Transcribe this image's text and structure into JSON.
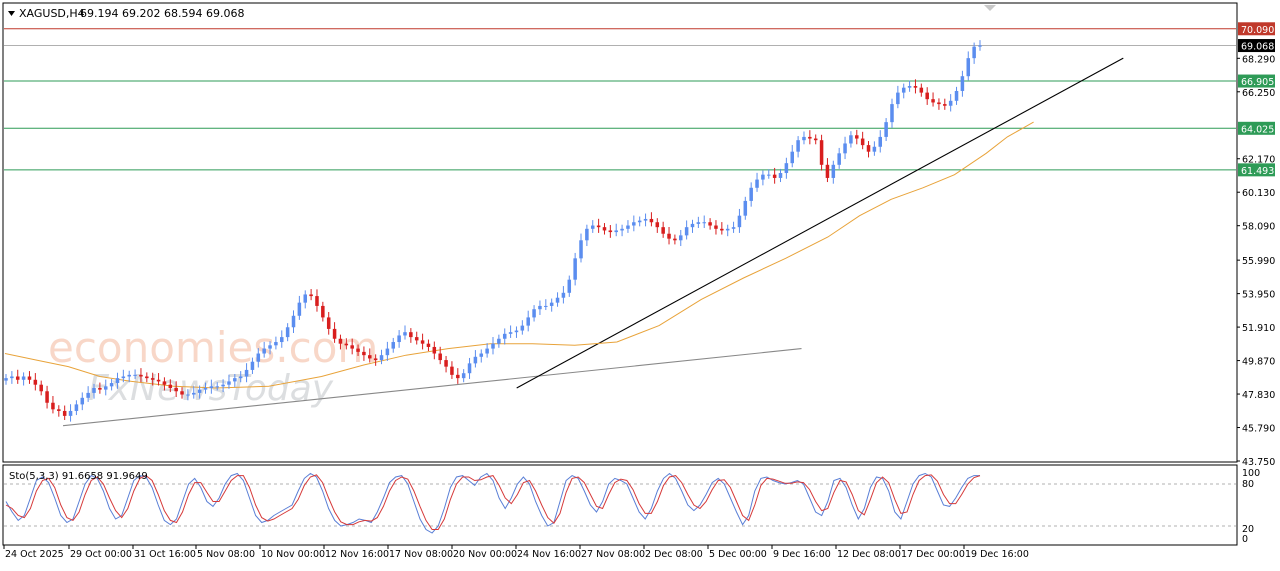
{
  "header": {
    "symbol": "XAGUSD,H4",
    "ohlc": "69.194 69.202 68.594 69.068"
  },
  "watermark": {
    "brand1": "economies.com",
    "brand2": "FxNewsToday"
  },
  "chart_data": [
    {
      "type": "candlestick",
      "instrument": "XAGUSD",
      "timeframe": "H4",
      "ylim": [
        43.75,
        71.6
      ],
      "y_ticks": [
        "70.090",
        "69.068",
        "68.290",
        "66.905",
        "66.250",
        "64.025",
        "62.170",
        "61.493",
        "60.130",
        "58.090",
        "55.990",
        "53.950",
        "51.910",
        "49.870",
        "47.830",
        "45.790",
        "43.750"
      ],
      "x_ticks": [
        "24 Oct 2025",
        "29 Oct 00:00",
        "31 Oct 16:00",
        "5 Nov 08:00",
        "10 Nov 00:00",
        "12 Nov 16:00",
        "17 Nov 08:00",
        "20 Nov 00:00",
        "24 Nov 16:00",
        "27 Nov 08:00",
        "2 Dec 08:00",
        "5 Dec 00:00",
        "9 Dec 16:00",
        "12 Dec 08:00",
        "17 Dec 00:00",
        "19 Dec 16:00"
      ],
      "current_price": 69.068,
      "horizontal_levels": [
        {
          "value": 70.09,
          "label": "70.090",
          "color": "#c0392b"
        },
        {
          "value": 66.905,
          "label": "66.905",
          "color": "#2e9b57"
        },
        {
          "value": 64.025,
          "label": "64.025",
          "color": "#2e9b57"
        },
        {
          "value": 61.493,
          "label": "61.493",
          "color": "#2e9b57"
        }
      ],
      "trendlines": [
        {
          "from": {
            "x": 0.055,
            "y": 45.9
          },
          "to": {
            "x": 0.755,
            "y": 50.6
          },
          "color": "#888888"
        },
        {
          "from": {
            "x": 0.485,
            "y": 48.2
          },
          "to": {
            "x": 1.06,
            "y": 68.3
          },
          "color": "#000000"
        }
      ],
      "moving_average": {
        "color": "#e8a33a",
        "points": [
          [
            0.0,
            50.3
          ],
          [
            0.03,
            49.9
          ],
          [
            0.06,
            49.5
          ],
          [
            0.09,
            48.9
          ],
          [
            0.12,
            48.6
          ],
          [
            0.16,
            48.3
          ],
          [
            0.2,
            48.2
          ],
          [
            0.25,
            48.3
          ],
          [
            0.3,
            48.9
          ],
          [
            0.34,
            49.6
          ],
          [
            0.38,
            50.2
          ],
          [
            0.42,
            50.6
          ],
          [
            0.46,
            50.9
          ],
          [
            0.5,
            50.9
          ],
          [
            0.54,
            50.8
          ],
          [
            0.58,
            51.0
          ],
          [
            0.62,
            52.0
          ],
          [
            0.66,
            53.6
          ],
          [
            0.7,
            54.9
          ],
          [
            0.74,
            56.1
          ],
          [
            0.78,
            57.4
          ],
          [
            0.81,
            58.7
          ],
          [
            0.84,
            59.7
          ],
          [
            0.87,
            60.4
          ],
          [
            0.9,
            61.2
          ],
          [
            0.93,
            62.5
          ],
          [
            0.95,
            63.5
          ],
          [
            0.975,
            64.4
          ]
        ]
      },
      "series": [
        {
          "name": "price",
          "values": [
            48.8,
            48.9,
            48.7,
            48.9,
            48.7,
            48.4,
            48.0,
            47.3,
            46.9,
            46.8,
            46.5,
            46.8,
            47.2,
            47.6,
            47.9,
            48.2,
            48.1,
            48.3,
            48.5,
            48.8,
            48.9,
            49.0,
            49.0,
            48.9,
            48.8,
            48.7,
            48.6,
            48.4,
            48.2,
            48.0,
            47.8,
            47.8,
            47.9,
            48.1,
            48.2,
            48.3,
            48.3,
            48.4,
            48.6,
            48.8,
            48.9,
            49.3,
            49.8,
            50.3,
            50.6,
            50.8,
            51.0,
            51.3,
            51.9,
            52.6,
            53.4,
            53.9,
            53.8,
            53.2,
            52.5,
            51.8,
            51.2,
            50.9,
            50.8,
            50.6,
            50.4,
            50.2,
            50.0,
            49.9,
            50.2,
            50.6,
            51.0,
            51.4,
            51.6,
            51.3,
            51.1,
            50.9,
            50.7,
            50.3,
            49.9,
            49.5,
            49.0,
            48.8,
            49.1,
            49.7,
            50.1,
            50.3,
            50.6,
            50.9,
            51.2,
            51.5,
            51.6,
            51.7,
            52.0,
            52.5,
            53.0,
            53.2,
            53.2,
            53.4,
            53.7,
            54.0,
            54.8,
            56.1,
            57.2,
            57.9,
            58.1,
            58.0,
            57.8,
            57.7,
            57.8,
            57.9,
            58.1,
            58.3,
            58.4,
            58.5,
            58.3,
            58.0,
            57.6,
            57.3,
            57.2,
            57.5,
            58.0,
            58.2,
            58.3,
            58.3,
            58.1,
            57.9,
            57.8,
            57.9,
            58.0,
            58.7,
            59.6,
            60.4,
            60.9,
            61.2,
            61.2,
            61.0,
            61.3,
            61.9,
            62.6,
            63.3,
            63.5,
            63.4,
            63.3,
            61.8,
            61.0,
            61.8,
            62.5,
            63.1,
            63.6,
            63.4,
            63.0,
            62.6,
            62.9,
            63.5,
            64.4,
            65.5,
            66.2,
            66.5,
            66.6,
            66.5,
            66.2,
            65.8,
            65.6,
            65.5,
            65.4,
            65.7,
            66.3,
            67.2,
            68.3,
            69.0,
            69.07
          ]
        }
      ]
    },
    {
      "type": "line",
      "title": "Sto(5,3,3) 91.6658 91.9649",
      "ylim": [
        0,
        100
      ],
      "y_ticks": [
        "100",
        "80",
        "20",
        "0"
      ],
      "levels": [
        80,
        20
      ],
      "series": [
        {
          "name": "main",
          "color": "#5a7fd6",
          "values": [
            55,
            40,
            28,
            35,
            60,
            85,
            90,
            82,
            60,
            35,
            25,
            30,
            55,
            80,
            92,
            88,
            70,
            45,
            30,
            35,
            60,
            85,
            92,
            90,
            75,
            50,
            28,
            22,
            30,
            55,
            80,
            88,
            75,
            55,
            48,
            60,
            80,
            92,
            95,
            85,
            60,
            35,
            25,
            28,
            35,
            40,
            45,
            50,
            70,
            88,
            95,
            90,
            70,
            45,
            28,
            20,
            22,
            25,
            30,
            28,
            25,
            40,
            60,
            82,
            90,
            92,
            80,
            55,
            30,
            15,
            10,
            20,
            45,
            75,
            90,
            92,
            85,
            78,
            90,
            95,
            85,
            60,
            45,
            60,
            80,
            90,
            80,
            55,
            35,
            20,
            25,
            55,
            85,
            92,
            88,
            70,
            50,
            40,
            55,
            80,
            88,
            85,
            80,
            60,
            40,
            30,
            45,
            70,
            88,
            95,
            88,
            70,
            50,
            42,
            50,
            65,
            82,
            88,
            80,
            60,
            40,
            22,
            35,
            70,
            88,
            90,
            85,
            82,
            80,
            82,
            85,
            80,
            60,
            40,
            35,
            55,
            85,
            88,
            75,
            50,
            30,
            45,
            75,
            90,
            88,
            70,
            40,
            30,
            55,
            80,
            92,
            95,
            90,
            70,
            50,
            48,
            60,
            75,
            88,
            92,
            92
          ]
        },
        {
          "name": "signal",
          "color": "#d63a3a",
          "values": [
            50,
            45,
            35,
            32,
            45,
            70,
            85,
            88,
            75,
            50,
            32,
            28,
            40,
            65,
            85,
            90,
            80,
            60,
            42,
            32,
            45,
            70,
            88,
            92,
            85,
            65,
            42,
            28,
            25,
            40,
            65,
            82,
            82,
            68,
            55,
            55,
            70,
            85,
            92,
            92,
            75,
            50,
            32,
            27,
            30,
            35,
            40,
            45,
            58,
            78,
            90,
            93,
            82,
            60,
            40,
            26,
            22,
            22,
            26,
            28,
            27,
            32,
            48,
            70,
            85,
            90,
            87,
            70,
            48,
            28,
            15,
            15,
            30,
            58,
            80,
            90,
            90,
            85,
            86,
            90,
            92,
            78,
            60,
            52,
            65,
            82,
            85,
            70,
            50,
            32,
            24,
            38,
            68,
            88,
            90,
            82,
            65,
            48,
            45,
            65,
            82,
            87,
            85,
            72,
            52,
            38,
            38,
            55,
            78,
            90,
            92,
            82,
            65,
            50,
            45,
            55,
            72,
            85,
            86,
            75,
            55,
            35,
            28,
            50,
            78,
            88,
            87,
            84,
            81,
            81,
            83,
            82,
            72,
            55,
            42,
            45,
            68,
            85,
            83,
            65,
            42,
            36,
            58,
            82,
            90,
            82,
            58,
            38,
            40,
            65,
            85,
            92,
            93,
            84,
            65,
            52,
            52,
            65,
            80,
            89,
            92
          ]
        }
      ]
    }
  ]
}
